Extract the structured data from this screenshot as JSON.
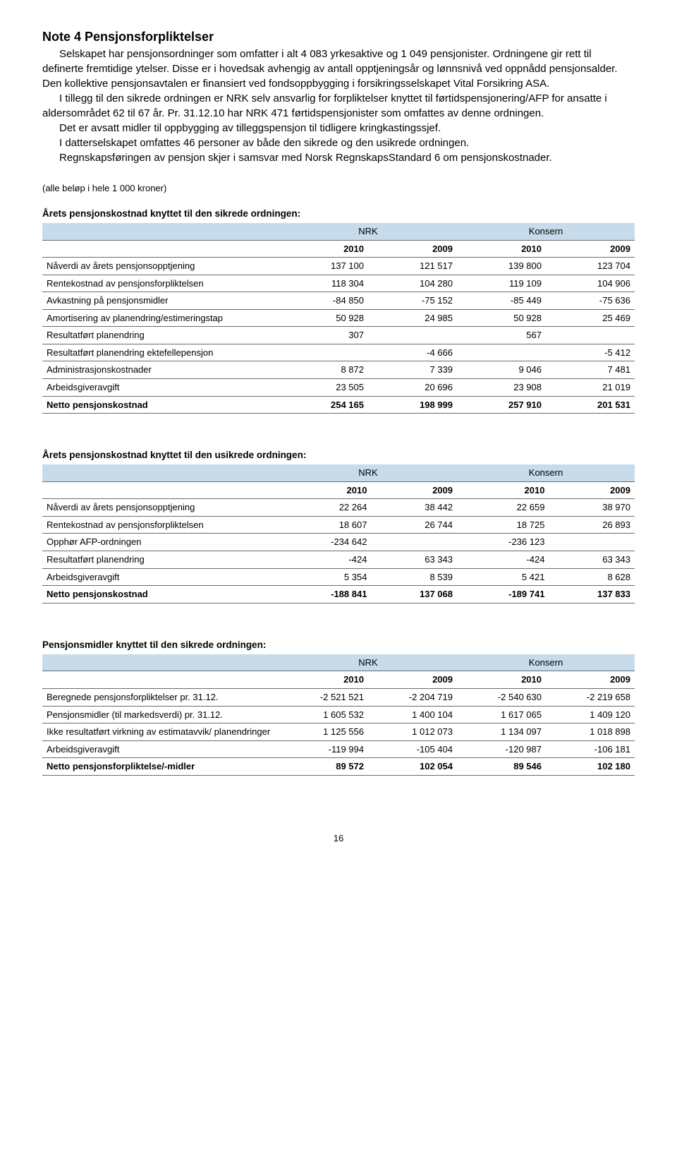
{
  "title": "Note 4 Pensjonsforpliktelser",
  "paragraphs": [
    "Selskapet har pensjonsordninger som omfatter i alt 4 083 yrkesaktive og 1 049 pensjonister. Ordningene gir rett til definerte fremtidige ytelser. Disse er i hovedsak avhengig av antall opptjeningsår og lønnsnivå ved oppnådd pensjonsalder. Den kollektive pensjonsavtalen er finansiert ved fondsoppbygging i forsikringsselskapet Vital Forsikring ASA.",
    "I tillegg til den sikrede ordningen er NRK selv ansvarlig for forpliktelser knyttet til førtidspensjonering/AFP for ansatte i aldersområdet 62 til 67 år. Pr. 31.12.10 har NRK 471 førtidspensjonister som omfattes av denne ordningen.",
    "Det er avsatt midler til oppbygging av tilleggspensjon til tidligere kringkastingssjef.",
    "I datterselskapet omfattes 46 personer av både den sikrede og den usikrede ordningen.",
    "Regnskapsføringen av pensjon skjer i samsvar med Norsk RegnskapsStandard 6 om pensjonskostnader."
  ],
  "note_unit": "(alle beløp i hele 1 000 kroner)",
  "group_labels": {
    "nrk": "NRK",
    "konsern": "Konsern"
  },
  "years": {
    "a": "2010",
    "b": "2009",
    "c": "2010",
    "d": "2009"
  },
  "tables": [
    {
      "caption": "Årets pensjonskostnad knyttet til den sikrede ordningen:",
      "rows": [
        {
          "label": "Nåverdi av årets pensjonsopptjening",
          "a": "137 100",
          "b": "121 517",
          "c": "139 800",
          "d": "123 704"
        },
        {
          "label": "Rentekostnad av pensjonsforpliktelsen",
          "a": "118 304",
          "b": "104 280",
          "c": "119 109",
          "d": "104 906"
        },
        {
          "label": "Avkastning på pensjonsmidler",
          "a": "-84 850",
          "b": "-75 152",
          "c": "-85 449",
          "d": "-75 636"
        },
        {
          "label": "Amortisering av planendring/estimeringstap",
          "a": "50 928",
          "b": "24 985",
          "c": "50 928",
          "d": "25 469"
        },
        {
          "label": "Resultatført planendring",
          "a": "307",
          "b": "",
          "c": "567",
          "d": ""
        },
        {
          "label": "Resultatført planendring ektefellepensjon",
          "a": "",
          "b": "-4 666",
          "c": "",
          "d": "-5 412"
        },
        {
          "label": "Administrasjonskostnader",
          "a": "8 872",
          "b": "7 339",
          "c": "9 046",
          "d": "7 481"
        },
        {
          "label": "Arbeidsgiveravgift",
          "a": "23 505",
          "b": "20 696",
          "c": "23 908",
          "d": "21 019"
        }
      ],
      "total": {
        "label": "Netto pensjonskostnad",
        "a": "254 165",
        "b": "198 999",
        "c": "257 910",
        "d": "201 531"
      }
    },
    {
      "caption": "Årets pensjonskostnad knyttet til den usikrede ordningen:",
      "rows": [
        {
          "label": "Nåverdi av årets pensjonsopptjening",
          "a": "22 264",
          "b": "38 442",
          "c": "22 659",
          "d": "38 970"
        },
        {
          "label": "Rentekostnad av pensjonsforpliktelsen",
          "a": "18 607",
          "b": "26 744",
          "c": "18 725",
          "d": "26 893"
        },
        {
          "label": "Opphør AFP-ordningen",
          "a": "-234 642",
          "b": "",
          "c": "-236 123",
          "d": ""
        },
        {
          "label": "Resultatført planendring",
          "a": "-424",
          "b": "63 343",
          "c": "-424",
          "d": "63 343"
        },
        {
          "label": "Arbeidsgiveravgift",
          "a": "5 354",
          "b": "8 539",
          "c": "5 421",
          "d": "8 628"
        }
      ],
      "total": {
        "label": "Netto pensjonskostnad",
        "a": "-188 841",
        "b": "137 068",
        "c": "-189 741",
        "d": "137 833"
      }
    },
    {
      "caption": "Pensjonsmidler knyttet til den sikrede ordningen:",
      "rows": [
        {
          "label": "Beregnede pensjonsforpliktelser pr. 31.12.",
          "a": "-2 521 521",
          "b": "-2 204 719",
          "c": "-2 540 630",
          "d": "-2 219 658"
        },
        {
          "label": "Pensjonsmidler (til markedsverdi) pr. 31.12.",
          "a": "1 605 532",
          "b": "1 400 104",
          "c": "1 617 065",
          "d": "1 409 120"
        },
        {
          "label": "Ikke resultatført virkning av estimatavvik/ planendringer",
          "a": "1 125 556",
          "b": "1 012 073",
          "c": "1 134 097",
          "d": "1 018 898"
        },
        {
          "label": "Arbeidsgiveravgift",
          "a": "-119 994",
          "b": "-105 404",
          "c": "-120 987",
          "d": "-106 181"
        }
      ],
      "total": {
        "label": "Netto pensjonsforpliktelse/-midler",
        "a": "89 572",
        "b": "102 054",
        "c": "89 546",
        "d": "102 180"
      }
    }
  ],
  "page_number": "16"
}
